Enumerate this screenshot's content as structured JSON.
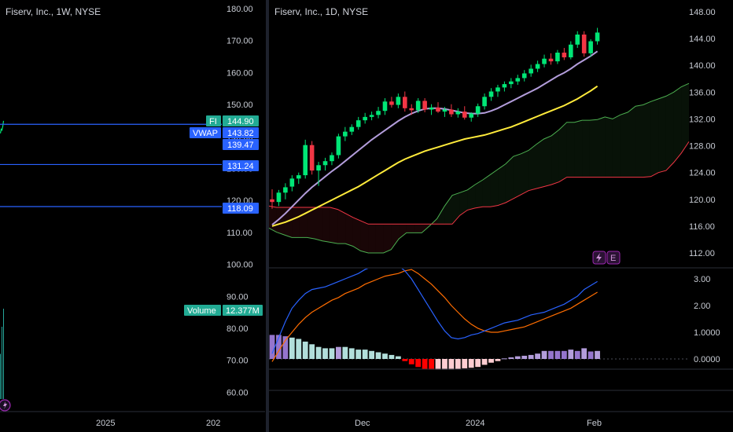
{
  "left_panel": {
    "title": "Fiserv, Inc., 1W, NYSE",
    "price_ticks": [
      "180.00",
      "170.00",
      "160.00",
      "150.00",
      "140.00",
      "130.00",
      "120.00",
      "110.00",
      "100.00",
      "90.00",
      "80.00",
      "70.00",
      "60.00"
    ],
    "x_ticks": [
      "2025",
      "202"
    ],
    "tags": {
      "symbol": {
        "label": "FI",
        "value": "144.90",
        "color": "#22ab94"
      },
      "vwap": {
        "label": "VWAP",
        "value": "143.82",
        "color": "#2962ff"
      },
      "vwap_band_1": {
        "value": "139.47",
        "color": "#2962ff"
      },
      "vwap_band_2": {
        "value": "131.24",
        "color": "#2962ff"
      },
      "vwap_band_3": {
        "value": "118.09",
        "color": "#2962ff"
      },
      "volume": {
        "label": "Volume",
        "value": "12.377M",
        "color": "#22ab94"
      }
    },
    "bottom_icon": "lightning-icon"
  },
  "right_panel": {
    "title": "Fiserv, Inc., 1D, NYSE",
    "price_ticks": [
      "148.00",
      "144.00",
      "140.00",
      "136.00",
      "132.00",
      "128.00",
      "124.00",
      "120.00",
      "116.00",
      "112.00"
    ],
    "osc_ticks": [
      "3.00",
      "2.00",
      "1.0000",
      "0.0000"
    ],
    "x_ticks": [
      "Dec",
      "2024",
      "Feb"
    ],
    "badges": [
      {
        "icon": "lightning-icon"
      },
      {
        "letter": "E"
      }
    ]
  },
  "chart_data": {
    "type": "candlestick",
    "title": "Fiserv, Inc., 1D, NYSE",
    "ylim": [
      110,
      150
    ],
    "colors": {
      "up": "#26a69a",
      "up_body": "#00e676",
      "down": "#f23645",
      "ma_fast": "#b39ddb",
      "ma_slow": "#ffeb3b",
      "cloud_lead": "#4caf50",
      "cloud_lag": "#f23645",
      "macd": "#2962ff",
      "signal": "#ff6d00"
    },
    "candles": [
      {
        "o": 120.0,
        "h": 121.5,
        "l": 118.6,
        "c": 119.6
      },
      {
        "o": 119.6,
        "h": 121.4,
        "l": 119.0,
        "c": 121.0
      },
      {
        "o": 121.0,
        "h": 122.4,
        "l": 120.0,
        "c": 121.8
      },
      {
        "o": 121.9,
        "h": 123.6,
        "l": 121.2,
        "c": 123.1
      },
      {
        "o": 123.1,
        "h": 124.0,
        "l": 122.3,
        "c": 123.6
      },
      {
        "o": 123.6,
        "h": 128.9,
        "l": 123.1,
        "c": 128.1
      },
      {
        "o": 128.1,
        "h": 128.7,
        "l": 123.7,
        "c": 124.3
      },
      {
        "o": 124.3,
        "h": 125.6,
        "l": 122.0,
        "c": 125.1
      },
      {
        "o": 125.1,
        "h": 126.2,
        "l": 124.3,
        "c": 125.7
      },
      {
        "o": 125.7,
        "h": 127.0,
        "l": 125.1,
        "c": 126.6
      },
      {
        "o": 126.6,
        "h": 129.8,
        "l": 126.1,
        "c": 129.4
      },
      {
        "o": 129.4,
        "h": 130.8,
        "l": 128.7,
        "c": 130.1
      },
      {
        "o": 130.1,
        "h": 131.2,
        "l": 129.6,
        "c": 130.8
      },
      {
        "o": 130.8,
        "h": 132.3,
        "l": 130.4,
        "c": 131.8
      },
      {
        "o": 131.8,
        "h": 132.9,
        "l": 131.3,
        "c": 132.3
      },
      {
        "o": 132.3,
        "h": 133.1,
        "l": 131.8,
        "c": 132.6
      },
      {
        "o": 132.6,
        "h": 133.8,
        "l": 132.1,
        "c": 133.2
      },
      {
        "o": 133.2,
        "h": 135.1,
        "l": 132.6,
        "c": 134.6
      },
      {
        "o": 134.6,
        "h": 135.3,
        "l": 133.7,
        "c": 134.1
      },
      {
        "o": 134.1,
        "h": 135.8,
        "l": 133.6,
        "c": 135.3
      },
      {
        "o": 135.3,
        "h": 136.1,
        "l": 133.1,
        "c": 133.6
      },
      {
        "o": 133.6,
        "h": 134.2,
        "l": 132.6,
        "c": 133.3
      },
      {
        "o": 133.3,
        "h": 135.1,
        "l": 132.9,
        "c": 134.7
      },
      {
        "o": 134.7,
        "h": 135.1,
        "l": 133.0,
        "c": 133.4
      },
      {
        "o": 133.4,
        "h": 134.2,
        "l": 132.6,
        "c": 133.7
      },
      {
        "o": 133.7,
        "h": 134.5,
        "l": 132.9,
        "c": 133.1
      },
      {
        "o": 133.1,
        "h": 133.8,
        "l": 132.3,
        "c": 133.4
      },
      {
        "o": 133.4,
        "h": 134.2,
        "l": 132.3,
        "c": 132.7
      },
      {
        "o": 132.7,
        "h": 133.6,
        "l": 132.2,
        "c": 133.1
      },
      {
        "o": 133.1,
        "h": 133.9,
        "l": 131.9,
        "c": 132.2
      },
      {
        "o": 132.2,
        "h": 133.0,
        "l": 131.6,
        "c": 132.8
      },
      {
        "o": 132.8,
        "h": 134.3,
        "l": 132.3,
        "c": 133.9
      },
      {
        "o": 133.9,
        "h": 135.8,
        "l": 133.4,
        "c": 135.3
      },
      {
        "o": 135.3,
        "h": 136.6,
        "l": 134.7,
        "c": 136.1
      },
      {
        "o": 136.1,
        "h": 137.1,
        "l": 135.3,
        "c": 136.7
      },
      {
        "o": 136.7,
        "h": 137.6,
        "l": 136.1,
        "c": 137.2
      },
      {
        "o": 137.2,
        "h": 138.1,
        "l": 136.6,
        "c": 137.6
      },
      {
        "o": 137.6,
        "h": 138.6,
        "l": 137.1,
        "c": 138.1
      },
      {
        "o": 138.1,
        "h": 139.3,
        "l": 137.6,
        "c": 138.8
      },
      {
        "o": 138.8,
        "h": 140.1,
        "l": 138.3,
        "c": 139.5
      },
      {
        "o": 139.5,
        "h": 140.7,
        "l": 139.0,
        "c": 140.2
      },
      {
        "o": 140.2,
        "h": 141.6,
        "l": 139.7,
        "c": 141.0
      },
      {
        "o": 141.0,
        "h": 141.8,
        "l": 140.1,
        "c": 140.6
      },
      {
        "o": 140.6,
        "h": 142.3,
        "l": 140.2,
        "c": 141.9
      },
      {
        "o": 141.9,
        "h": 142.6,
        "l": 140.8,
        "c": 141.2
      },
      {
        "o": 141.2,
        "h": 143.6,
        "l": 140.9,
        "c": 143.1
      },
      {
        "o": 143.1,
        "h": 145.1,
        "l": 142.6,
        "c": 144.6
      },
      {
        "o": 144.6,
        "h": 145.1,
        "l": 141.3,
        "c": 141.8
      },
      {
        "o": 141.8,
        "h": 143.9,
        "l": 141.3,
        "c": 143.6
      },
      {
        "o": 143.6,
        "h": 145.6,
        "l": 143.1,
        "c": 144.9
      }
    ],
    "ma_fast": [
      116.2,
      117.0,
      117.9,
      118.9,
      119.9,
      120.9,
      121.8,
      122.6,
      123.4,
      124.2,
      124.9,
      125.7,
      126.5,
      127.3,
      128.1,
      128.9,
      129.6,
      130.3,
      131.0,
      131.7,
      132.3,
      132.8,
      133.2,
      133.5,
      133.6,
      133.6,
      133.5,
      133.3,
      133.1,
      132.9,
      132.8,
      132.8,
      132.9,
      133.2,
      133.6,
      134.1,
      134.6,
      135.1,
      135.6,
      136.1,
      136.6,
      137.2,
      137.8,
      138.4,
      138.9,
      139.5,
      140.2,
      140.8,
      141.4,
      142.1
    ],
    "ma_slow": [
      116.0,
      116.3,
      116.6,
      117.0,
      117.4,
      117.9,
      118.4,
      118.9,
      119.4,
      119.9,
      120.4,
      120.9,
      121.4,
      121.9,
      122.5,
      123.1,
      123.7,
      124.3,
      124.9,
      125.5,
      126.0,
      126.4,
      126.8,
      127.2,
      127.5,
      127.8,
      128.1,
      128.4,
      128.7,
      129.0,
      129.2,
      129.4,
      129.6,
      129.9,
      130.2,
      130.5,
      130.8,
      131.2,
      131.6,
      132.0,
      132.4,
      132.8,
      133.2,
      133.6,
      134.0,
      134.5,
      135.0,
      135.6,
      136.2,
      136.9
    ],
    "cloud": {
      "span_a": [
        115.7,
        115.1,
        114.7,
        114.3,
        114.3,
        114.3,
        114.1,
        113.8,
        113.6,
        113.4,
        113.4,
        113.0,
        112.3,
        112.0,
        112.0,
        112.0,
        112.5,
        114.1,
        115.0,
        115.0,
        115.0,
        116.0,
        117.1,
        119.0,
        120.6,
        121.0,
        121.4,
        122.2,
        122.9,
        123.7,
        124.5,
        125.3,
        126.4,
        126.8,
        127.3,
        128.2,
        129.0,
        129.5,
        130.4,
        131.5,
        131.5,
        131.8,
        131.8,
        131.9,
        132.3,
        132.0,
        132.6,
        133.0,
        133.9,
        134.1,
        134.6,
        135.0,
        135.4,
        136.0,
        136.8,
        137.3
      ],
      "span_b": [
        119.0,
        118.8,
        118.8,
        118.8,
        118.8,
        118.8,
        118.8,
        118.8,
        118.8,
        118.5,
        117.9,
        117.3,
        116.8,
        116.3,
        116.3,
        116.3,
        116.3,
        116.3,
        116.3,
        116.3,
        116.3,
        116.3,
        116.3,
        116.3,
        116.3,
        117.6,
        118.4,
        118.7,
        118.9,
        118.9,
        119.1,
        119.5,
        120.1,
        120.7,
        121.3,
        121.6,
        121.9,
        122.2,
        122.6,
        123.3,
        123.3,
        123.3,
        123.3,
        123.3,
        123.3,
        123.3,
        123.3,
        123.3,
        123.3,
        123.3,
        123.4,
        124.0,
        124.3,
        125.5,
        126.9,
        128.6
      ]
    },
    "oscillator": {
      "ylim": [
        -1.3,
        3.4
      ],
      "macd": [
        0.2,
        0.8,
        1.4,
        1.9,
        2.2,
        2.45,
        2.6,
        2.65,
        2.7,
        2.8,
        2.9,
        3.0,
        3.1,
        3.2,
        3.35,
        3.45,
        3.6,
        3.8,
        3.7,
        3.5,
        3.3,
        3.0,
        2.6,
        2.2,
        1.8,
        1.4,
        1.05,
        0.8,
        0.75,
        0.8,
        0.9,
        0.95,
        1.05,
        1.15,
        1.25,
        1.35,
        1.4,
        1.45,
        1.55,
        1.65,
        1.7,
        1.75,
        1.85,
        1.95,
        2.05,
        2.2,
        2.35,
        2.6,
        2.75,
        2.9
      ],
      "signal": [
        -0.1,
        0.3,
        0.7,
        1.0,
        1.3,
        1.55,
        1.75,
        1.9,
        2.05,
        2.2,
        2.3,
        2.45,
        2.55,
        2.65,
        2.8,
        2.9,
        3.0,
        3.1,
        3.15,
        3.2,
        3.3,
        3.35,
        3.2,
        3.0,
        2.8,
        2.55,
        2.3,
        2.0,
        1.75,
        1.5,
        1.3,
        1.15,
        1.05,
        1.0,
        1.0,
        1.05,
        1.1,
        1.15,
        1.2,
        1.3,
        1.4,
        1.5,
        1.6,
        1.7,
        1.8,
        1.9,
        2.05,
        2.2,
        2.35,
        2.5
      ],
      "histogram": [
        0.9,
        0.9,
        0.85,
        0.8,
        0.75,
        0.65,
        0.55,
        0.45,
        0.4,
        0.4,
        0.45,
        0.45,
        0.4,
        0.35,
        0.35,
        0.3,
        0.25,
        0.2,
        0.15,
        0.1,
        -0.08,
        -0.2,
        -0.3,
        -0.38,
        -0.4,
        -0.4,
        -0.4,
        -0.4,
        -0.38,
        -0.35,
        -0.33,
        -0.3,
        -0.22,
        -0.14,
        -0.08,
        0.02,
        0.06,
        0.1,
        0.12,
        0.15,
        0.2,
        0.3,
        0.3,
        0.3,
        0.3,
        0.35,
        0.3,
        0.4,
        0.28,
        0.3
      ]
    },
    "left_panel_series": {
      "close_line": [
        141.0,
        142.3,
        142.0,
        143.1,
        144.9
      ],
      "volume_bars": [
        0.5,
        0.8,
        1.0
      ]
    }
  }
}
